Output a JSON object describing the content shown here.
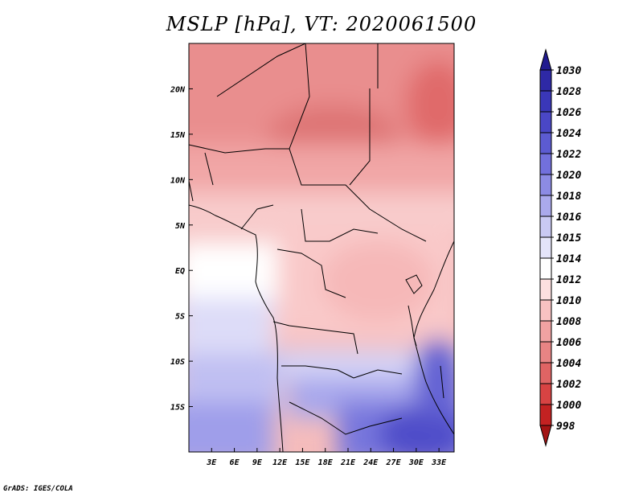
{
  "title": "MSLP [hPa], VT: 2020061500",
  "credit": "GrADS: IGES/COLA",
  "chart_data": {
    "type": "heatmap",
    "title": "MSLP [hPa], VT: 2020061500",
    "x_ticks": [
      "3E",
      "6E",
      "9E",
      "12E",
      "15E",
      "18E",
      "21E",
      "24E",
      "27E",
      "30E",
      "33E"
    ],
    "x_tick_values": [
      3,
      6,
      9,
      12,
      15,
      18,
      21,
      24,
      27,
      30,
      33
    ],
    "y_ticks": [
      "20N",
      "15N",
      "10N",
      "5N",
      "EQ",
      "5S",
      "10S",
      "15S"
    ],
    "y_tick_values": [
      20,
      15,
      10,
      5,
      0,
      -5,
      -10,
      -15
    ],
    "xlim": [
      0,
      35
    ],
    "ylim": [
      -20,
      25
    ],
    "colorbar": {
      "levels": [
        "1030",
        "1028",
        "1026",
        "1024",
        "1022",
        "1020",
        "1018",
        "1016",
        "1015",
        "1014",
        "1012",
        "1010",
        "1008",
        "1006",
        "1004",
        "1002",
        "1000",
        "998"
      ],
      "colors": [
        "#211b8f",
        "#2e29a6",
        "#3a37b8",
        "#4a47c6",
        "#5c5bd1",
        "#7270dc",
        "#8c8be4",
        "#aaa9ec",
        "#c9c9f3",
        "#e4e4f9",
        "#ffffff",
        "#fde0e0",
        "#f8c2c2",
        "#f0a2a2",
        "#e88484",
        "#df6464",
        "#d84343",
        "#c32222",
        "#a31414"
      ],
      "extend": "both"
    },
    "field_summary": [
      {
        "lon": 25,
        "lat": 15,
        "value": 1007
      },
      {
        "lon": 33,
        "lat": 19,
        "value": 1005
      },
      {
        "lon": 8,
        "lat": 20,
        "value": 1009
      },
      {
        "lon": 20,
        "lat": 8,
        "value": 1011
      },
      {
        "lon": 25,
        "lat": -3,
        "value": 1012
      },
      {
        "lon": 5,
        "lat": 0,
        "value": 1014
      },
      {
        "lon": 3,
        "lat": -10,
        "value": 1016
      },
      {
        "lon": 20,
        "lat": -12,
        "value": 1016
      },
      {
        "lon": 28,
        "lat": -16,
        "value": 1022
      },
      {
        "lon": 32,
        "lat": -19,
        "value": 1024
      }
    ]
  }
}
